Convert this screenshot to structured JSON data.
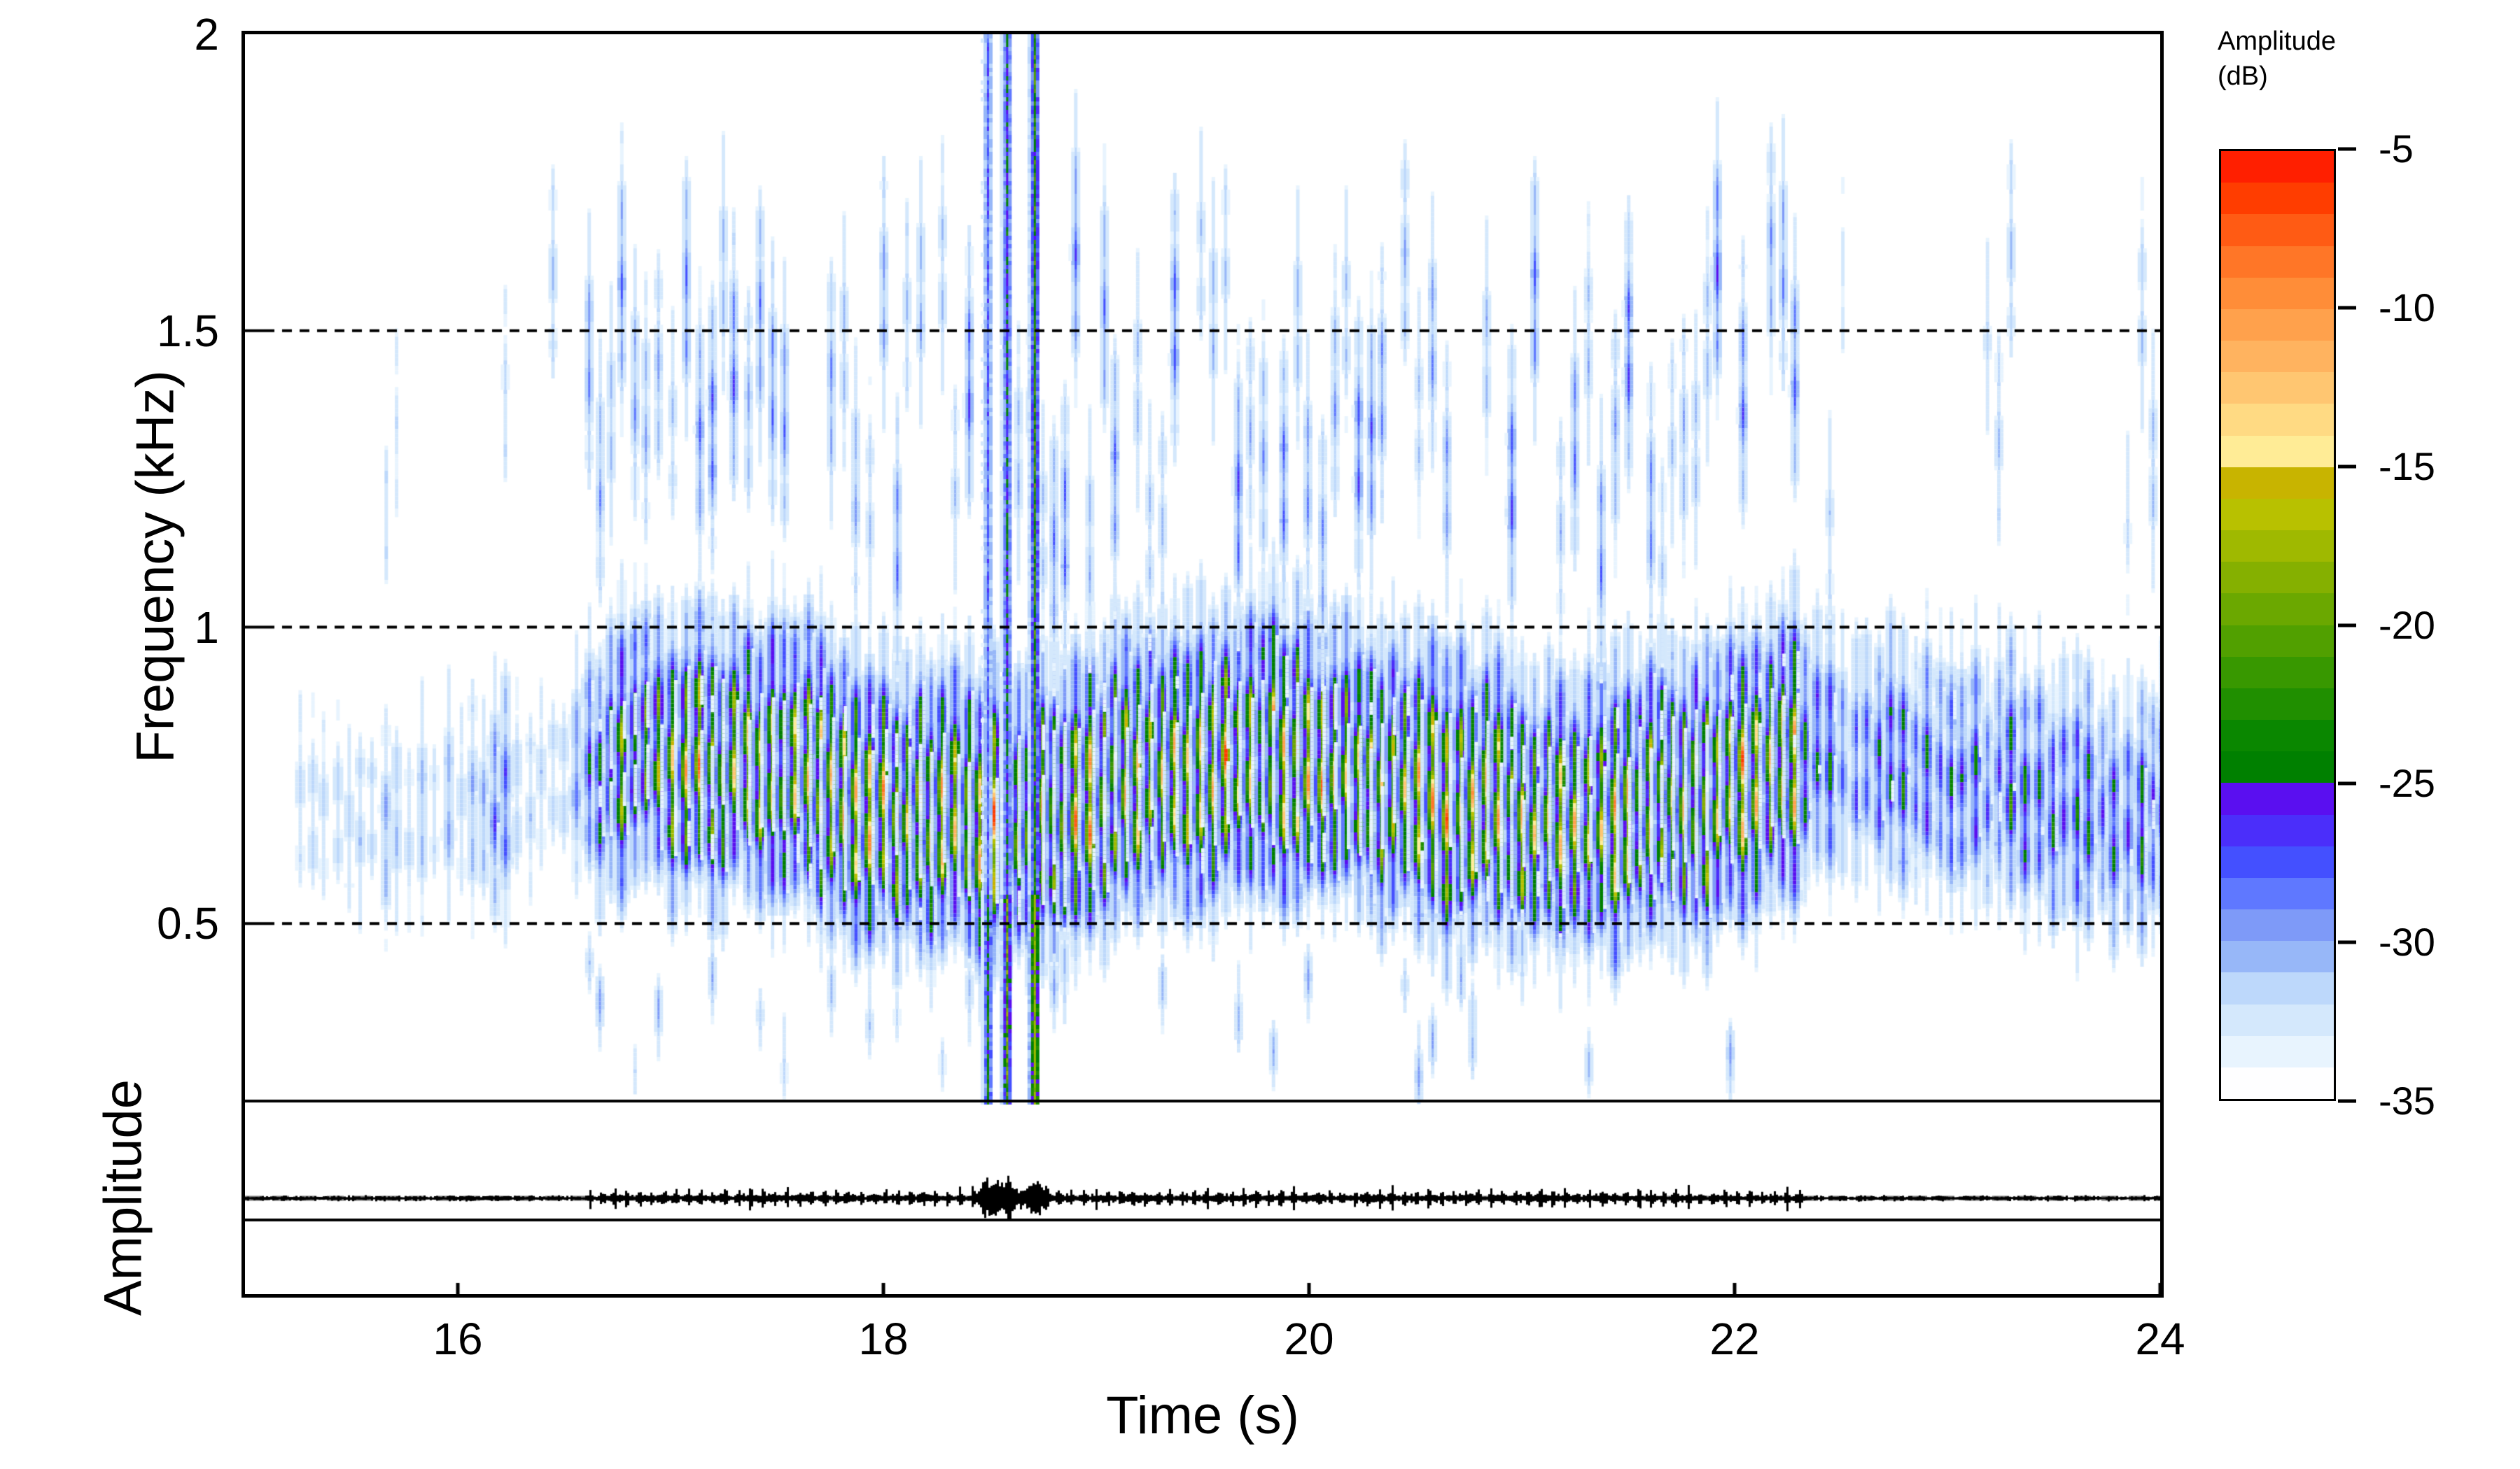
{
  "figure": {
    "kind": "spectrogram with oscillogram",
    "background": "#ffffff",
    "foreground": "#000000"
  },
  "axes": {
    "x": {
      "title": "Time (s)",
      "range": [
        15,
        24
      ],
      "ticks": [
        {
          "value": 16,
          "label": "16"
        },
        {
          "value": 18,
          "label": "18"
        },
        {
          "value": 20,
          "label": "20"
        },
        {
          "value": 22,
          "label": "22"
        },
        {
          "value": 24,
          "label": "24"
        }
      ]
    },
    "y": {
      "title": "Frequency (kHz)",
      "range": [
        0,
        2
      ],
      "ticks": [
        {
          "value": 0.5,
          "label": "0.5"
        },
        {
          "value": 1,
          "label": "1"
        },
        {
          "value": 1.5,
          "label": "1.5"
        },
        {
          "value": 2,
          "label": "2"
        }
      ],
      "dashed_gridlines_khz": [
        0.5,
        1,
        1.5
      ]
    },
    "osc": {
      "title": "Amplitude"
    }
  },
  "colorbar": {
    "title_line1": "Amplitude",
    "title_line2": "(dB)",
    "range_db": [
      -35,
      -5
    ],
    "ticks": [
      {
        "value": -5,
        "label": "-5"
      },
      {
        "value": -10,
        "label": "-10"
      },
      {
        "value": -15,
        "label": "-15"
      },
      {
        "value": -20,
        "label": "-20"
      },
      {
        "value": -25,
        "label": "-25"
      },
      {
        "value": -30,
        "label": "-30"
      },
      {
        "value": -35,
        "label": "-35"
      }
    ],
    "n_steps": 30,
    "colors_top_to_bottom": [
      "#FF1F00",
      "#FF3D00",
      "#FF5B14",
      "#FF7627",
      "#FF8D38",
      "#FFA14C",
      "#FFB35F",
      "#FFC671",
      "#FFDA83",
      "#FFEC96",
      "#C8B400",
      "#B8C100",
      "#9FB900",
      "#85B000",
      "#6BA800",
      "#51A000",
      "#389800",
      "#208F00",
      "#0A8700",
      "#008000",
      "#5A0FF0",
      "#4B2EFA",
      "#4450FF",
      "#5F78FF",
      "#7E9AF8",
      "#97B7F8",
      "#BDD8FB",
      "#D4E8FC",
      "#E8F4FE",
      "#FEFEFF"
    ]
  },
  "chart_data": {
    "type": "heatmap",
    "subtype": "spectrogram",
    "title": "",
    "xlabel": "Time (s)",
    "ylabel": "Frequency (kHz)",
    "x_range_s": [
      15,
      24
    ],
    "y_range_khz": [
      0,
      2
    ],
    "amplitude_scale_db": [
      -35,
      -5
    ],
    "grid": "dashed horizontal lines at 0.5, 1.0 and 1.5 kHz",
    "legend_position": "right colorbar",
    "spectrogram": {
      "displayed_low_cutoff_khz": 0.2,
      "data_floor_line_khz": 0.2,
      "zero_khz_line": true,
      "call_band_khz": [
        0.44,
        0.97
      ],
      "band_peak_khz": 0.72,
      "lead_in_interval_s": [
        15.2,
        16.6
      ],
      "active_interval_s": [
        16.6,
        22.32
      ],
      "tail_interval_s": [
        22.32,
        23.97
      ],
      "pulse_period_s": 0.058,
      "upper_streak_band_khz": [
        1.0,
        1.75
      ],
      "low_streak_band_khz": [
        0.25,
        0.45
      ],
      "broadband_clicks": [
        {
          "t_s": 18.49,
          "strength": 0.28
        },
        {
          "t_s": 18.58,
          "strength": 0.4
        },
        {
          "t_s": 18.71,
          "strength": 0.52
        }
      ],
      "click_low_freq_boost_below_khz": 0.55,
      "seed": 20240917
    },
    "oscillogram": {
      "zero_line_style": "dashed gray",
      "zero_line_color": "#7b7b7b",
      "quiet_amplitude": 2.6,
      "active_amplitude": 4.2,
      "pulse_spike_amplitude": 7.5,
      "click_spike_amplitude": 17
    }
  }
}
